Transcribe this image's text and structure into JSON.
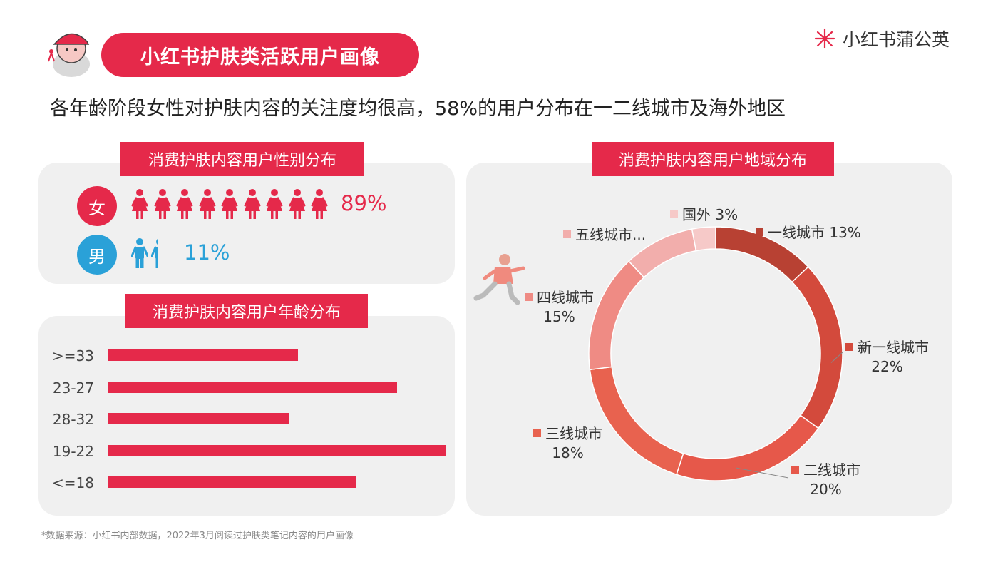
{
  "header": {
    "title": "小红书护肤类活跃用户画像",
    "brand": "小红书蒲公英",
    "headline": "各年龄阶段女性对护肤内容的关注度均很高，58%的用户分布在一二线城市及海外地区"
  },
  "gender": {
    "label": "消费护肤内容用户性别分布",
    "female": {
      "symbol": "女",
      "pct": "89%",
      "color": "#e5294a",
      "value": 89
    },
    "male": {
      "symbol": "男",
      "pct": "11%",
      "color": "#2aa1d8",
      "value": 11
    }
  },
  "age": {
    "label": "消费护肤内容用户年龄分布"
  },
  "region": {
    "label": "消费护肤内容用户地域分布"
  },
  "footnote": "*数据来源：小红书内部数据，2022年3月阅读过护肤类笔记内容的用户画像",
  "chart_data": [
    {
      "type": "bar",
      "orientation": "horizontal",
      "title": "消费护肤内容用户年龄分布",
      "categories": [
        ">=33",
        "23-27",
        "28-32",
        "19-22",
        "<=18"
      ],
      "values": [
        23,
        35,
        22,
        41,
        30
      ],
      "color": "#e5294a"
    },
    {
      "type": "pie",
      "variant": "donut",
      "title": "消费护肤内容用户地域分布",
      "slices": [
        {
          "name": "一线城市",
          "value": 13,
          "label": "一线城市 13%",
          "color": "#b84133"
        },
        {
          "name": "新一线城市",
          "value": 22,
          "label": "新一线城市",
          "pct": "22%",
          "color": "#d34a3c"
        },
        {
          "name": "二线城市",
          "value": 20,
          "label": "二线城市",
          "pct": "20%",
          "color": "#e6584a"
        },
        {
          "name": "三线城市",
          "value": 18,
          "label": "三线城市",
          "pct": "18%",
          "color": "#e8624f"
        },
        {
          "name": "四线城市",
          "value": 15,
          "label": "四线城市",
          "pct": "15%",
          "color": "#ef8b84"
        },
        {
          "name": "五线城市",
          "value": 9,
          "label": "五线城市...",
          "color": "#f2aeac"
        },
        {
          "name": "国外",
          "value": 3,
          "label": "国外 3%",
          "color": "#f6c9c8"
        }
      ]
    }
  ]
}
